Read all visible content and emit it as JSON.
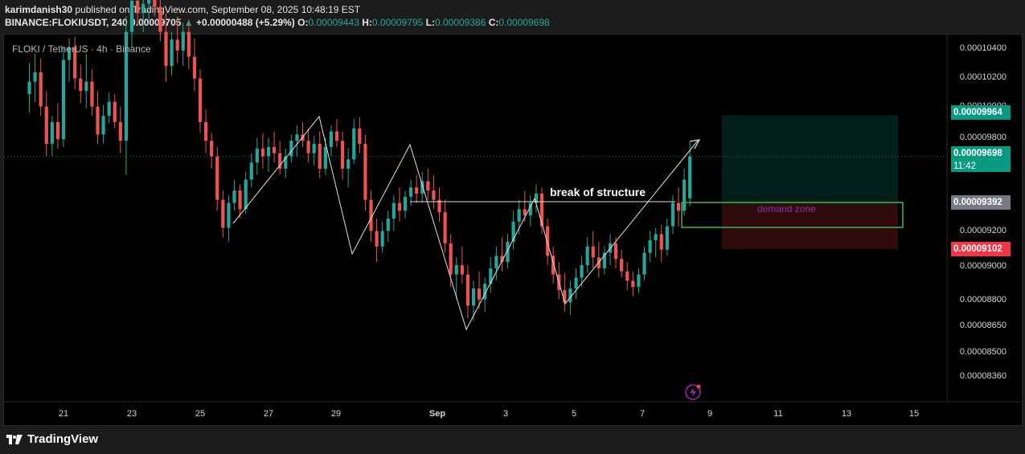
{
  "header": {
    "author": "karimdanish30",
    "published": "published on TradingView.com, September 08, 2025 10:48:19 EST",
    "symbol_line": "BINANCE:FLOKIUSDT, 240",
    "last": "0.00009705",
    "change": "+0.00000488 (+5.29%)",
    "o_label": "O:",
    "o": "0.00009443",
    "h_label": "H:",
    "h": "0.00009795",
    "l_label": "L:",
    "l": "0.00009386",
    "c_label": "C:",
    "c": "0.00009698"
  },
  "symbol_label": "FLOKI / TetherUS · 4h · Binance",
  "annotations": {
    "bos": "break of structure",
    "demand": "demand zone"
  },
  "price_tags": {
    "target": "0.00009964",
    "current": "0.00009698",
    "countdown": "11:42",
    "entry": "0.00009392",
    "stop": "0.00009102"
  },
  "footer": {
    "brand": "TradingView"
  },
  "colors": {
    "up": "#26a69a",
    "down": "#ef5350",
    "target_tag": "#089981",
    "stop_tag": "#f23645",
    "entry_tag": "#787b86",
    "demand_border": "#4caf50",
    "demand_text": "#9c27b0"
  },
  "chart_data": {
    "type": "candlestick",
    "y_ticks": [
      "0.00010400",
      "0.00010200",
      "0.00010000",
      "0.00009800",
      "0.00009200",
      "0.00009000",
      "0.00008800",
      "0.00008650",
      "0.00008500",
      "0.00008360"
    ],
    "x_ticks": [
      "21",
      "23",
      "25",
      "27",
      "29",
      "Sep",
      "3",
      "5",
      "7",
      "9",
      "11",
      "13",
      "15"
    ],
    "candles": [
      [
        "Aug 20 00:00",
        0.000101,
        0.000103,
        9.98e-05,
        0.0001018
      ],
      [
        "Aug 20 04:00",
        0.0001018,
        0.0001036,
        0.0001005,
        0.0001024
      ],
      [
        "Aug 20 08:00",
        0.0001024,
        0.0001033,
        9.96e-05,
        0.0001002
      ],
      [
        "Aug 20 12:00",
        0.0001002,
        0.0001012,
        9.7e-05,
        9.78e-05
      ],
      [
        "Aug 20 16:00",
        9.78e-05,
        9.96e-05,
        9.7e-05,
        9.92e-05
      ],
      [
        "Aug 20 20:00",
        9.92e-05,
        0.0001004,
        9.75e-05,
        9.81e-05
      ],
      [
        "Aug 21 00:00",
        9.81e-05,
        0.000104,
        9.76e-05,
        0.0001032
      ],
      [
        "Aug 21 04:00",
        0.0001032,
        0.0001046,
        0.0001018,
        0.000104
      ],
      [
        "Aug 21 08:00",
        0.000104,
        0.0001047,
        0.0001013,
        0.000102
      ],
      [
        "Aug 21 12:00",
        0.000102,
        0.0001029,
        0.0001004,
        0.0001012
      ],
      [
        "Aug 21 16:00",
        0.0001012,
        0.0001036,
        0.0001001,
        0.0001018
      ],
      [
        "Aug 21 20:00",
        0.0001018,
        0.0001026,
        9.96e-05,
        0.0001002
      ],
      [
        "Aug 22 00:00",
        0.0001002,
        0.0001012,
        9.78e-05,
        9.84e-05
      ],
      [
        "Aug 22 04:00",
        9.84e-05,
        0.0001003,
        9.78e-05,
        9.96e-05
      ],
      [
        "Aug 22 08:00",
        9.96e-05,
        0.0001011,
        9.91e-05,
        0.0001005
      ],
      [
        "Aug 22 12:00",
        0.0001005,
        0.000101,
        9.88e-05,
        9.92e-05
      ],
      [
        "Aug 22 16:00",
        9.92e-05,
        0.0001002,
        9.72e-05,
        9.8e-05
      ],
      [
        "Aug 22 20:00",
        9.8e-05,
        0.000106,
        9.58e-05,
        0.000105
      ],
      [
        "Aug 23 00:00",
        0.000105,
        0.000108,
        0.000104,
        0.000107
      ],
      [
        "Aug 23 04:00",
        0.000107,
        0.0001085,
        0.0001055,
        0.0001062
      ],
      [
        "Aug 23 08:00",
        0.0001062,
        0.0001078,
        0.000105,
        0.0001068
      ],
      [
        "Aug 23 12:00",
        0.0001068,
        0.0001082,
        0.0001058,
        0.0001075
      ],
      [
        "Aug 23 16:00",
        0.0001075,
        0.000109,
        0.000106,
        0.0001066
      ],
      [
        "Aug 23 20:00",
        0.0001066,
        0.0001078,
        0.0001044,
        0.000105
      ],
      [
        "Aug 24 00:00",
        0.000105,
        0.0001062,
        0.0001018,
        0.0001028
      ],
      [
        "Aug 24 04:00",
        0.0001028,
        0.000105,
        0.0001022,
        0.0001045
      ],
      [
        "Aug 24 08:00",
        0.0001045,
        0.000106,
        0.000103,
        0.0001038
      ],
      [
        "Aug 24 12:00",
        0.0001038,
        0.0001056,
        0.0001028,
        0.000105
      ],
      [
        "Aug 24 16:00",
        0.000105,
        0.0001058,
        0.0001026,
        0.0001034
      ],
      [
        "Aug 24 20:00",
        0.0001034,
        0.0001046,
        0.0001012,
        0.000102
      ],
      [
        "Aug 25 00:00",
        0.000102,
        0.0001026,
        9.85e-05,
        9.92e-05
      ],
      [
        "Aug 25 04:00",
        9.92e-05,
        0.0001,
        9.72e-05,
        9.8e-05
      ],
      [
        "Aug 25 08:00",
        9.8e-05,
        9.85e-05,
        9.62e-05,
        9.7e-05
      ],
      [
        "Aug 25 12:00",
        9.7e-05,
        9.76e-05,
        9.35e-05,
        9.42e-05
      ],
      [
        "Aug 25 16:00",
        9.42e-05,
        9.48e-05,
        9.18e-05,
        9.24e-05
      ],
      [
        "Aug 25 20:00",
        9.24e-05,
        9.45e-05,
        9.15e-05,
        9.4e-05
      ],
      [
        "Aug 26 00:00",
        9.4e-05,
        9.55e-05,
        9.35e-05,
        9.48e-05
      ],
      [
        "Aug 26 04:00",
        9.48e-05,
        9.52e-05,
        9.3e-05,
        9.36e-05
      ],
      [
        "Aug 26 08:00",
        9.36e-05,
        9.6e-05,
        9.33e-05,
        9.55e-05
      ],
      [
        "Aug 26 12:00",
        9.55e-05,
        9.72e-05,
        9.5e-05,
        9.66e-05
      ],
      [
        "Aug 26 16:00",
        9.66e-05,
        9.82e-05,
        9.58e-05,
        9.75e-05
      ],
      [
        "Aug 26 20:00",
        9.75e-05,
        9.85e-05,
        9.62e-05,
        9.7e-05
      ],
      [
        "Aug 27 00:00",
        9.7e-05,
        9.82e-05,
        9.6e-05,
        9.76e-05
      ],
      [
        "Aug 27 04:00",
        9.76e-05,
        9.86e-05,
        9.66e-05,
        9.72e-05
      ],
      [
        "Aug 27 08:00",
        9.72e-05,
        9.8e-05,
        9.58e-05,
        9.62e-05
      ],
      [
        "Aug 27 12:00",
        9.62e-05,
        9.75e-05,
        9.56e-05,
        9.7e-05
      ],
      [
        "Aug 27 16:00",
        9.7e-05,
        9.84e-05,
        9.66e-05,
        9.8e-05
      ],
      [
        "Aug 27 20:00",
        9.8e-05,
        9.9e-05,
        9.7e-05,
        9.84e-05
      ],
      [
        "Aug 28 00:00",
        9.84e-05,
        9.92e-05,
        9.76e-05,
        9.8e-05
      ],
      [
        "Aug 28 04:00",
        9.8e-05,
        9.88e-05,
        9.66e-05,
        9.72e-05
      ],
      [
        "Aug 28 08:00",
        9.72e-05,
        9.83e-05,
        9.64e-05,
        9.78e-05
      ],
      [
        "Aug 28 12:00",
        9.78e-05,
        9.86e-05,
        9.56e-05,
        9.62e-05
      ],
      [
        "Aug 28 16:00",
        9.62e-05,
        9.82e-05,
        9.58e-05,
        9.76e-05
      ],
      [
        "Aug 28 20:00",
        9.76e-05,
        9.9e-05,
        9.7e-05,
        9.86e-05
      ],
      [
        "Aug 29 00:00",
        9.86e-05,
        9.94e-05,
        9.76e-05,
        9.8e-05
      ],
      [
        "Aug 29 04:00",
        9.8e-05,
        9.86e-05,
        9.55e-05,
        9.62e-05
      ],
      [
        "Aug 29 08:00",
        9.62e-05,
        9.75e-05,
        9.5e-05,
        9.68e-05
      ],
      [
        "Aug 29 12:00",
        9.68e-05,
        9.94e-05,
        9.65e-05,
        9.88e-05
      ],
      [
        "Aug 29 16:00",
        9.88e-05,
        9.95e-05,
        9.72e-05,
        9.78e-05
      ],
      [
        "Aug 29 20:00",
        9.78e-05,
        9.84e-05,
        9.35e-05,
        9.42e-05
      ],
      [
        "Aug 30 00:00",
        9.42e-05,
        9.48e-05,
        9.15e-05,
        9.22e-05
      ],
      [
        "Aug 30 04:00",
        9.22e-05,
        9.3e-05,
        9.02e-05,
        9.12e-05
      ],
      [
        "Aug 30 08:00",
        9.12e-05,
        9.28e-05,
        9.08e-05,
        9.22e-05
      ],
      [
        "Aug 30 12:00",
        9.22e-05,
        9.35e-05,
        9.15e-05,
        9.3e-05
      ],
      [
        "Aug 30 16:00",
        9.3e-05,
        9.45e-05,
        9.22e-05,
        9.4e-05
      ],
      [
        "Aug 30 20:00",
        9.4e-05,
        9.5e-05,
        9.28e-05,
        9.35e-05
      ],
      [
        "Aug 31 00:00",
        9.35e-05,
        9.48e-05,
        9.3e-05,
        9.44e-05
      ],
      [
        "Aug 31 04:00",
        9.44e-05,
        9.55e-05,
        9.38e-05,
        9.5e-05
      ],
      [
        "Aug 31 08:00",
        9.5e-05,
        9.58e-05,
        9.4e-05,
        9.46e-05
      ],
      [
        "Aug 31 12:00",
        9.46e-05,
        9.6e-05,
        9.4e-05,
        9.54e-05
      ],
      [
        "Aug 31 16:00",
        9.54e-05,
        9.62e-05,
        9.42e-05,
        9.48e-05
      ],
      [
        "Aug 31 20:00",
        9.48e-05,
        9.58e-05,
        9.36e-05,
        9.42e-05
      ],
      [
        "Sep 1 00:00",
        9.42e-05,
        9.5e-05,
        9.28e-05,
        9.34e-05
      ],
      [
        "Sep 1 04:00",
        9.34e-05,
        9.42e-05,
        9.08e-05,
        9.14e-05
      ],
      [
        "Sep 1 08:00",
        9.14e-05,
        9.2e-05,
        8.86e-05,
        8.94e-05
      ],
      [
        "Sep 1 12:00",
        8.94e-05,
        9.05e-05,
        8.78e-05,
        9e-05
      ],
      [
        "Sep 1 16:00",
        9e-05,
        9.12e-05,
        8.88e-05,
        8.94e-05
      ],
      [
        "Sep 1 20:00",
        8.94e-05,
        9e-05,
        8.66e-05,
        8.74e-05
      ],
      [
        "Sep 2 00:00",
        8.74e-05,
        8.9e-05,
        8.64e-05,
        8.85e-05
      ],
      [
        "Sep 2 04:00",
        8.85e-05,
        8.96e-05,
        8.72e-05,
        8.78e-05
      ],
      [
        "Sep 2 08:00",
        8.78e-05,
        8.92e-05,
        8.7e-05,
        8.88e-05
      ],
      [
        "Sep 2 12:00",
        8.88e-05,
        9.05e-05,
        8.82e-05,
        8.98e-05
      ],
      [
        "Sep 2 16:00",
        8.98e-05,
        9.12e-05,
        8.9e-05,
        9.06e-05
      ],
      [
        "Sep 2 20:00",
        9.06e-05,
        9.18e-05,
        8.96e-05,
        9.02e-05
      ],
      [
        "Sep 3 00:00",
        9.02e-05,
        9.2e-05,
        8.98e-05,
        9.15e-05
      ],
      [
        "Sep 3 04:00",
        9.15e-05,
        9.35e-05,
        9.1e-05,
        9.28e-05
      ],
      [
        "Sep 3 08:00",
        9.28e-05,
        9.42e-05,
        9.2e-05,
        9.36e-05
      ],
      [
        "Sep 3 12:00",
        9.36e-05,
        9.48e-05,
        9.28e-05,
        9.32e-05
      ],
      [
        "Sep 3 16:00",
        9.32e-05,
        9.45e-05,
        9.25e-05,
        9.4e-05
      ],
      [
        "Sep 3 20:00",
        9.4e-05,
        9.52e-05,
        9.34e-05,
        9.46e-05
      ],
      [
        "Sep 4 00:00",
        9.46e-05,
        9.5e-05,
        9.2e-05,
        9.25e-05
      ],
      [
        "Sep 4 04:00",
        9.25e-05,
        9.3e-05,
        9e-05,
        9.06e-05
      ],
      [
        "Sep 4 08:00",
        9.06e-05,
        9.12e-05,
        8.88e-05,
        8.94e-05
      ],
      [
        "Sep 4 12:00",
        8.94e-05,
        9.02e-05,
        8.78e-05,
        8.84e-05
      ],
      [
        "Sep 4 16:00",
        8.84e-05,
        8.95e-05,
        8.7e-05,
        8.76e-05
      ],
      [
        "Sep 4 20:00",
        8.76e-05,
        8.9e-05,
        8.68e-05,
        8.85e-05
      ],
      [
        "Sep 5 00:00",
        8.85e-05,
        8.98e-05,
        8.78e-05,
        8.92e-05
      ],
      [
        "Sep 5 04:00",
        8.92e-05,
        9.06e-05,
        8.86e-05,
        9e-05
      ],
      [
        "Sep 5 08:00",
        9e-05,
        9.18e-05,
        8.95e-05,
        9.12e-05
      ],
      [
        "Sep 5 12:00",
        9.12e-05,
        9.22e-05,
        8.98e-05,
        9.05e-05
      ],
      [
        "Sep 5 16:00",
        9.05e-05,
        9.15e-05,
        8.92e-05,
        8.98e-05
      ],
      [
        "Sep 5 20:00",
        8.98e-05,
        9.12e-05,
        8.94e-05,
        9.08e-05
      ],
      [
        "Sep 6 00:00",
        9.08e-05,
        9.2e-05,
        9e-05,
        9.14e-05
      ],
      [
        "Sep 6 04:00",
        9.14e-05,
        9.18e-05,
        8.98e-05,
        9.04e-05
      ],
      [
        "Sep 6 08:00",
        9.04e-05,
        9.1e-05,
        8.92e-05,
        8.96e-05
      ],
      [
        "Sep 6 12:00",
        8.96e-05,
        9.02e-05,
        8.84e-05,
        8.9e-05
      ],
      [
        "Sep 6 16:00",
        8.9e-05,
        8.96e-05,
        8.8e-05,
        8.86e-05
      ],
      [
        "Sep 6 20:00",
        8.86e-05,
        8.98e-05,
        8.82e-05,
        8.94e-05
      ],
      [
        "Sep 7 00:00",
        8.94e-05,
        9.12e-05,
        8.9e-05,
        9.08e-05
      ],
      [
        "Sep 7 04:00",
        9.08e-05,
        9.22e-05,
        9.02e-05,
        9.16e-05
      ],
      [
        "Sep 7 08:00",
        9.16e-05,
        9.24e-05,
        9.05e-05,
        9.2e-05
      ],
      [
        "Sep 7 12:00",
        9.2e-05,
        9.26e-05,
        9.02e-05,
        9.1e-05
      ],
      [
        "Sep 7 16:00",
        9.1e-05,
        9.3e-05,
        9.06e-05,
        9.25e-05
      ],
      [
        "Sep 7 20:00",
        9.25e-05,
        9.45e-05,
        9.2e-05,
        9.4e-05
      ],
      [
        "Sep 8 00:00",
        9.4e-05,
        9.5e-05,
        9.25e-05,
        9.35e-05
      ],
      [
        "Sep 8 04:00",
        9.35e-05,
        9.62e-05,
        9.32e-05,
        9.55e-05
      ],
      [
        "Sep 8 08:00",
        9.43e-05,
        9.79e-05,
        9.38e-05,
        9.7e-05
      ]
    ]
  }
}
